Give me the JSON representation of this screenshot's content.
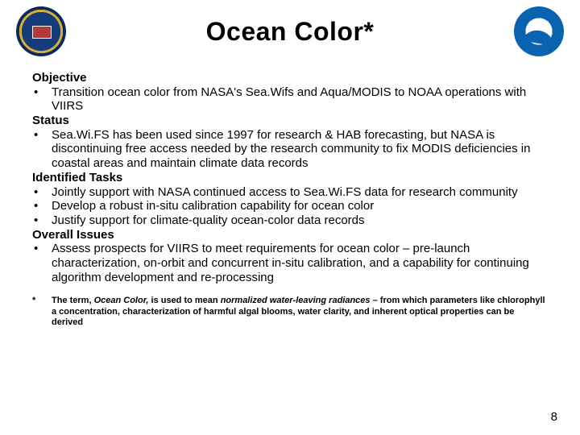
{
  "title": "Ocean Color*",
  "sections": {
    "objective": {
      "heading": "Objective",
      "bullets": [
        "Transition ocean color from NASA's Sea.Wifs and Aqua/MODIS to NOAA operations with VIIRS"
      ]
    },
    "status": {
      "heading": "Status",
      "bullets": [
        "Sea.Wi.FS has been used since 1997 for research & HAB forecasting, but NASA is discontinuing free access needed by the research community to fix MODIS deficiencies in coastal areas and maintain climate data records"
      ]
    },
    "tasks": {
      "heading": "Identified Tasks",
      "bullets": [
        "Jointly support with NASA continued access to Sea.Wi.FS data for research community",
        "Develop a robust in-situ calibration capability for ocean color",
        "Justify support for climate-quality ocean-color data records"
      ]
    },
    "issues": {
      "heading": "Overall Issues",
      "bullets": [
        "Assess prospects for VIIRS to meet requirements for ocean color – pre-launch characterization, on-orbit and concurrent in-situ calibration, and a capability for continuing algorithm development and re-processing"
      ]
    }
  },
  "footnote": {
    "mark": "*",
    "lead": "The term, ",
    "italic": "Ocean Color,",
    "body1": " is used to mean ",
    "italic2": "normalized water-leaving radiances",
    "body2": " – from which parameters like chlorophyll a concentration, characterization of harmful algal blooms, water clarity, and inherent optical properties can be derived"
  },
  "page_number": "8",
  "bullet_char": "•"
}
